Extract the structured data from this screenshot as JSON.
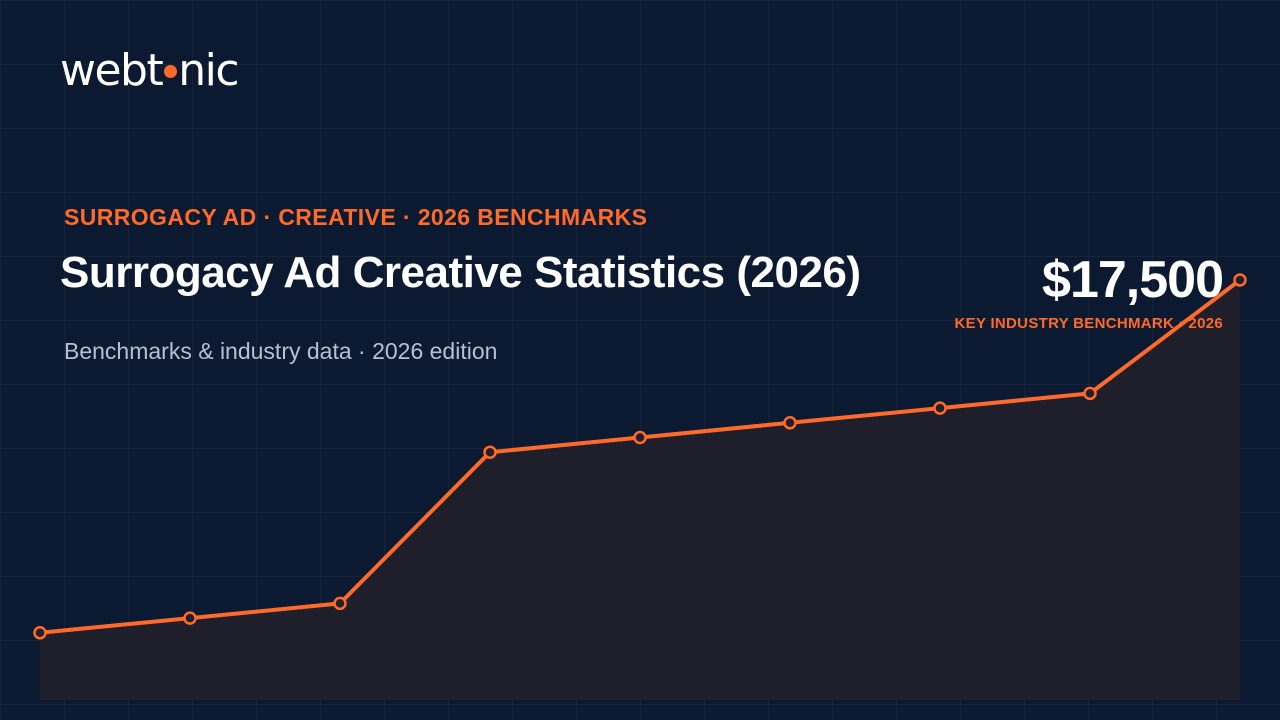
{
  "brand": {
    "logo_left": "webt",
    "logo_right": "nic"
  },
  "header": {
    "kicker": "SURROGACY AD · CREATIVE · 2026 BENCHMARKS",
    "title": "Surrogacy Ad Creative Statistics (2026)",
    "subtitle": "Benchmarks & industry data · 2026 edition"
  },
  "stat": {
    "value": "$17,500",
    "label": "KEY INDUSTRY BENCHMARK · 2026"
  },
  "colors": {
    "background": "#0c1a31",
    "accent": "#ff6a2b",
    "area_fill": "#221f2a"
  },
  "chart_data": {
    "type": "area",
    "x": [
      1,
      2,
      3,
      4,
      5,
      6,
      7,
      8,
      9
    ],
    "values": [
      3.2,
      3.9,
      4.6,
      11.8,
      12.5,
      13.2,
      13.9,
      14.6,
      20.0
    ],
    "ylim": [
      0,
      25
    ],
    "grid": true,
    "markers": true
  }
}
